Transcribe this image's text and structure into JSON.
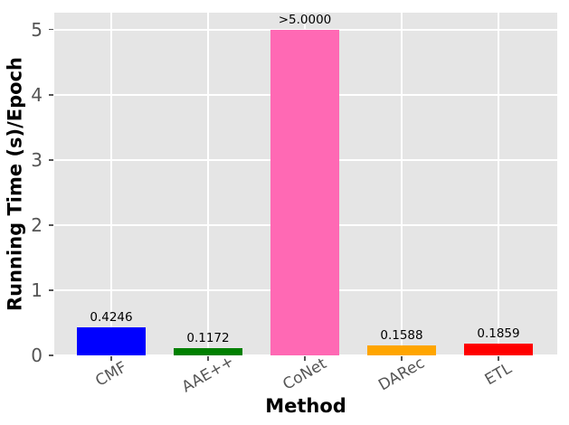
{
  "style": {
    "page_bg": "#ffffff",
    "plot_bg": "#e5e5e5",
    "grid_color": "#ffffff",
    "tick_color": "#555555",
    "axis_label_color": "#000000"
  },
  "chart_data": {
    "type": "bar",
    "title": "",
    "xlabel": "Method",
    "ylabel": "Running Time (s)/Epoch",
    "categories": [
      "CMF",
      "AAE++",
      "CoNet",
      "DARec",
      "ETL"
    ],
    "values": [
      0.4246,
      0.1172,
      5.0,
      0.1588,
      0.1859
    ],
    "bar_labels": [
      "0.4246",
      "0.1172",
      ">5.0000",
      "0.1588",
      "0.1859"
    ],
    "bar_colors": [
      "#0000ff",
      "#008000",
      "#ff69b4",
      "#ffa500",
      "#ff0000"
    ],
    "yticks": [
      0,
      1,
      2,
      3,
      4,
      5
    ],
    "ylim": [
      0,
      5.26
    ],
    "xtick_rotation": 30,
    "grid": true,
    "legend": false
  }
}
